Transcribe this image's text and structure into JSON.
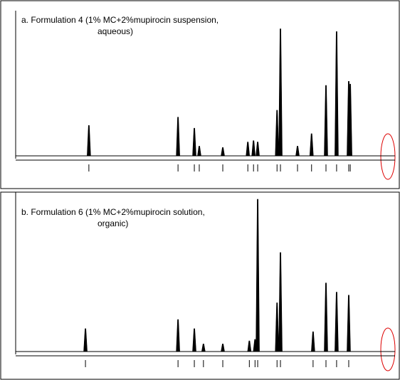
{
  "chart_data": [
    {
      "type": "spectrum",
      "title": "a. Formulation 4 (1% MC+2%mupirocin suspension,",
      "subtitle": "aqueous)",
      "color": "#000000",
      "xlim": [
        10,
        0
      ],
      "ylim": [
        0,
        100
      ],
      "x": [
        8.07,
        5.72,
        5.29,
        5.16,
        4.54,
        3.88,
        3.73,
        3.62,
        3.11,
        3.02,
        2.57,
        2.2,
        1.82,
        1.54,
        1.22,
        1.18
      ],
      "values": [
        22,
        28,
        20,
        7,
        6,
        10,
        11,
        10,
        33,
        92,
        7,
        16,
        51,
        90,
        54,
        52
      ]
    },
    {
      "type": "spectrum",
      "title": "b. Formulation 6 (1% MC+2%mupirocin solution,",
      "subtitle": "organic)",
      "color": "#000000",
      "xlim": [
        10,
        0
      ],
      "ylim": [
        0,
        100
      ],
      "x": [
        8.16,
        5.72,
        5.29,
        5.05,
        4.54,
        3.84,
        3.69,
        3.62,
        3.11,
        3.02,
        2.16,
        1.82,
        1.54,
        1.22
      ],
      "values": [
        15,
        21,
        15,
        5,
        5,
        7,
        8,
        100,
        32,
        65,
        13,
        45,
        39,
        37
      ]
    }
  ]
}
